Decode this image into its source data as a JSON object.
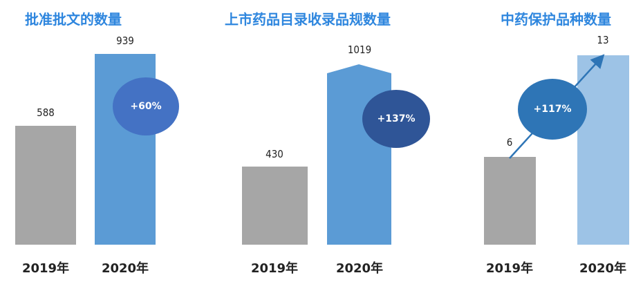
{
  "chart_data": [
    {
      "type": "bar",
      "title": "批准批文的数量",
      "categories": [
        "2019年",
        "2020年"
      ],
      "values": [
        588,
        939
      ],
      "growth": "+60%",
      "colors": {
        "title": "#2E86DE",
        "bar_2019": "#A6A6A6",
        "bar_2020": "#5B9BD5",
        "ellipse": "#4472C4"
      }
    },
    {
      "type": "bar",
      "title": "上市药品目录收录品规数量",
      "categories": [
        "2019年",
        "2020年"
      ],
      "values": [
        430,
        1019
      ],
      "growth": "+137%",
      "colors": {
        "title": "#2E86DE",
        "bar_2019": "#A6A6A6",
        "bar_2020": "#5B9BD5",
        "ellipse": "#2F5597"
      }
    },
    {
      "type": "bar",
      "title": "中药保护品种数量",
      "categories": [
        "2019年",
        "2020年"
      ],
      "values": [
        6,
        13
      ],
      "growth": "+117%",
      "colors": {
        "title": "#2E86DE",
        "bar_2019": "#A6A6A6",
        "bar_2020": "#9DC3E6",
        "ellipse": "#2E75B6",
        "arrow": "#2E75B6"
      }
    }
  ]
}
